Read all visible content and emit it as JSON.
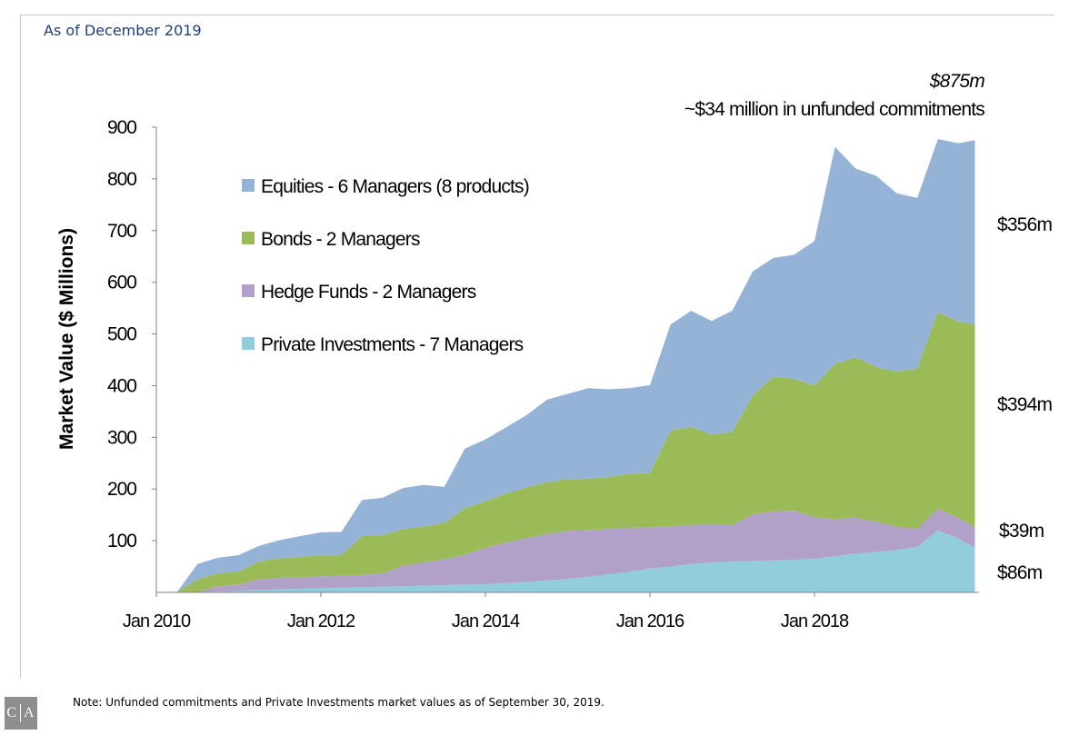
{
  "subtitle": "As of December 2019",
  "footnote": "Note: Unfunded commitments and Private Investments market values as of September 30, 2019.",
  "logo": {
    "left": "C",
    "right": "A"
  },
  "chart_data": {
    "type": "area",
    "stacked": true,
    "title": "",
    "xlabel": "",
    "ylabel": "Market Value ($ Millions)",
    "ylim": [
      0,
      900
    ],
    "yticks": [
      100,
      200,
      300,
      400,
      500,
      600,
      700,
      800,
      900
    ],
    "xlim": [
      2010.0,
      2020.0
    ],
    "xticks": [
      {
        "x": 2010,
        "label": "Jan 2010"
      },
      {
        "x": 2012,
        "label": "Jan 2012"
      },
      {
        "x": 2014,
        "label": "Jan 2014"
      },
      {
        "x": 2016,
        "label": "Jan 2016"
      },
      {
        "x": 2018,
        "label": "Jan 2018"
      }
    ],
    "legend_position": "top-left",
    "x": [
      2010.0,
      2010.25,
      2010.5,
      2010.75,
      2011.0,
      2011.25,
      2011.5,
      2011.75,
      2012.0,
      2012.25,
      2012.5,
      2012.75,
      2013.0,
      2013.25,
      2013.5,
      2013.75,
      2014.0,
      2014.25,
      2014.5,
      2014.75,
      2015.0,
      2015.25,
      2015.5,
      2015.75,
      2016.0,
      2016.25,
      2016.5,
      2016.75,
      2017.0,
      2017.25,
      2017.5,
      2017.75,
      2018.0,
      2018.25,
      2018.5,
      2018.75,
      2019.0,
      2019.25,
      2019.5,
      2019.75,
      2019.95
    ],
    "series": [
      {
        "name": "Private Investments - 7 Managers",
        "color": "#92cddc",
        "values": [
          0,
          0,
          0,
          2,
          3,
          5,
          6,
          7,
          8,
          9,
          10,
          11,
          12,
          13,
          14,
          15,
          16,
          18,
          20,
          23,
          26,
          30,
          35,
          40,
          46,
          50,
          55,
          58,
          60,
          61,
          62,
          63,
          65,
          70,
          75,
          78,
          82,
          88,
          120,
          104,
          86
        ]
      },
      {
        "name": "Hedge Funds - 2 Managers",
        "color": "#b1a0c7",
        "values": [
          0,
          0,
          0,
          10,
          12,
          20,
          22,
          22,
          23,
          23,
          24,
          25,
          40,
          45,
          50,
          58,
          70,
          78,
          85,
          90,
          93,
          90,
          88,
          85,
          80,
          78,
          75,
          72,
          70,
          90,
          95,
          95,
          80,
          72,
          70,
          58,
          45,
          35,
          42,
          40,
          39
        ]
      },
      {
        "name": "Bonds - 2 Managers",
        "color": "#9bbb59",
        "values": [
          0,
          0,
          25,
          25,
          25,
          35,
          38,
          40,
          40,
          40,
          75,
          75,
          70,
          70,
          70,
          90,
          90,
          95,
          98,
          100,
          100,
          100,
          100,
          105,
          105,
          185,
          190,
          175,
          180,
          230,
          260,
          255,
          255,
          300,
          310,
          300,
          300,
          310,
          380,
          380,
          394
        ]
      },
      {
        "name": "Equities - 6 Managers (8 products)",
        "color": "#95b3d7",
        "values": [
          0,
          0,
          30,
          30,
          32,
          30,
          35,
          40,
          45,
          45,
          70,
          72,
          80,
          80,
          70,
          115,
          120,
          128,
          140,
          160,
          165,
          175,
          170,
          165,
          170,
          205,
          225,
          220,
          235,
          240,
          230,
          240,
          280,
          420,
          365,
          370,
          345,
          330,
          335,
          345,
          356
        ]
      }
    ],
    "annotations": [
      {
        "text": "$875m",
        "italic": true
      },
      {
        "text": "~$34 million in unfunded commitments"
      },
      {
        "text": "$356m",
        "series": "Equities - 6 Managers (8 products)"
      },
      {
        "text": "$394m",
        "series": "Bonds - 2 Managers"
      },
      {
        "text": "$39m",
        "series": "Hedge Funds - 2 Managers"
      },
      {
        "text": "$86m",
        "series": "Private Investments - 7 Managers"
      }
    ]
  }
}
